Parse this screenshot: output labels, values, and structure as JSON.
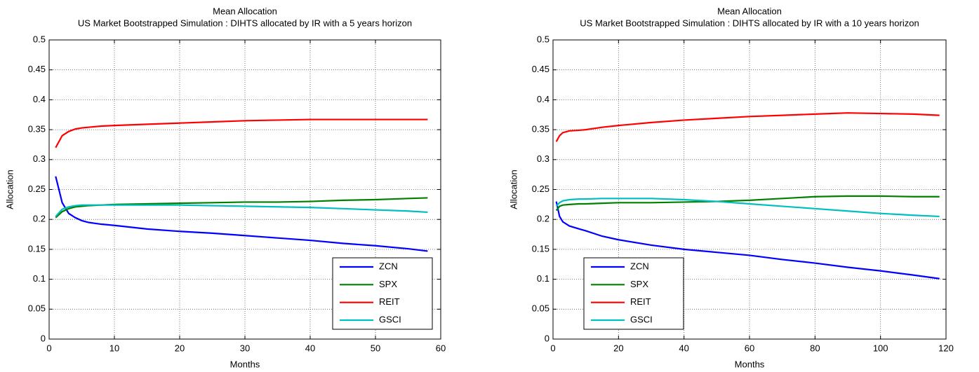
{
  "chart_data": [
    {
      "type": "line",
      "title": "Mean Allocation",
      "subtitle": "US Market Bootstrapped Simulation : DIHTS  allocated by IR with a 5 years horizon",
      "xlabel": "Months",
      "ylabel": "Allocation",
      "x": [
        1,
        2,
        3,
        4,
        5,
        6,
        8,
        10,
        15,
        20,
        25,
        30,
        35,
        40,
        45,
        50,
        55,
        58
      ],
      "series": [
        {
          "name": "ZCN",
          "color": "#0000ff",
          "values": [
            0.272,
            0.228,
            0.21,
            0.203,
            0.198,
            0.195,
            0.192,
            0.19,
            0.184,
            0.18,
            0.177,
            0.173,
            0.169,
            0.165,
            0.16,
            0.156,
            0.151,
            0.147
          ]
        },
        {
          "name": "SPX",
          "color": "#008000",
          "values": [
            0.203,
            0.213,
            0.218,
            0.221,
            0.222,
            0.223,
            0.224,
            0.225,
            0.226,
            0.227,
            0.228,
            0.229,
            0.229,
            0.23,
            0.232,
            0.233,
            0.235,
            0.236
          ]
        },
        {
          "name": "REIT",
          "color": "#ff0000",
          "values": [
            0.32,
            0.34,
            0.347,
            0.351,
            0.353,
            0.354,
            0.356,
            0.357,
            0.359,
            0.361,
            0.363,
            0.365,
            0.366,
            0.367,
            0.367,
            0.367,
            0.367,
            0.367
          ]
        },
        {
          "name": "GSCI",
          "color": "#00bfbf",
          "values": [
            0.205,
            0.217,
            0.221,
            0.223,
            0.224,
            0.224,
            0.224,
            0.224,
            0.224,
            0.224,
            0.223,
            0.222,
            0.221,
            0.22,
            0.218,
            0.216,
            0.214,
            0.212
          ]
        }
      ],
      "xlim": [
        0,
        60
      ],
      "xticks": [
        0,
        10,
        20,
        30,
        40,
        50,
        60
      ],
      "ylim": [
        0,
        0.5
      ],
      "yticks": [
        0,
        0.05,
        0.1,
        0.15,
        0.2,
        0.25,
        0.3,
        0.35,
        0.4,
        0.45,
        0.5
      ],
      "grid": true,
      "legend": "lower right"
    },
    {
      "type": "line",
      "title": "Mean Allocation",
      "subtitle": "US Market Bootstrapped Simulation : DIHTS  allocated by IR with a 10 years horizon",
      "xlabel": "Months",
      "ylabel": "Allocation",
      "x": [
        1,
        2,
        3,
        5,
        8,
        10,
        15,
        20,
        30,
        40,
        50,
        60,
        70,
        80,
        90,
        100,
        110,
        118
      ],
      "series": [
        {
          "name": "ZCN",
          "color": "#0000ff",
          "values": [
            0.23,
            0.205,
            0.196,
            0.189,
            0.184,
            0.181,
            0.172,
            0.166,
            0.157,
            0.15,
            0.145,
            0.14,
            0.133,
            0.127,
            0.12,
            0.114,
            0.107,
            0.101
          ]
        },
        {
          "name": "SPX",
          "color": "#008000",
          "values": [
            0.215,
            0.222,
            0.224,
            0.225,
            0.226,
            0.226,
            0.227,
            0.228,
            0.228,
            0.229,
            0.23,
            0.232,
            0.235,
            0.238,
            0.239,
            0.239,
            0.238,
            0.238
          ]
        },
        {
          "name": "REIT",
          "color": "#ff0000",
          "values": [
            0.33,
            0.34,
            0.345,
            0.348,
            0.349,
            0.35,
            0.354,
            0.357,
            0.362,
            0.366,
            0.369,
            0.372,
            0.374,
            0.376,
            0.378,
            0.377,
            0.376,
            0.374
          ]
        },
        {
          "name": "GSCI",
          "color": "#00bfbf",
          "values": [
            0.222,
            0.228,
            0.231,
            0.233,
            0.234,
            0.234,
            0.235,
            0.235,
            0.235,
            0.233,
            0.23,
            0.226,
            0.222,
            0.218,
            0.214,
            0.21,
            0.207,
            0.205
          ]
        }
      ],
      "xlim": [
        0,
        120
      ],
      "xticks": [
        0,
        20,
        40,
        60,
        80,
        100,
        120
      ],
      "ylim": [
        0,
        0.5
      ],
      "yticks": [
        0,
        0.05,
        0.1,
        0.15,
        0.2,
        0.25,
        0.3,
        0.35,
        0.4,
        0.45,
        0.5
      ],
      "grid": true,
      "legend": "lower left"
    }
  ]
}
